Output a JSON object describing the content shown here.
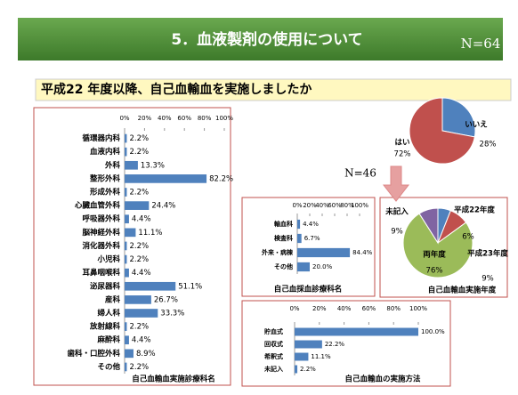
{
  "header": {
    "title": "5．血液製剤の使用について",
    "n": "N=64"
  },
  "question": "平成22 年度以降、自己血輸血を実施しましたか",
  "sub_n": "N=46",
  "chart_data": [
    {
      "type": "bar",
      "orientation": "horizontal",
      "title": "自己血輸血実施診療科名",
      "color": "#4f81bd",
      "categories": [
        "循環器内科",
        "血液内科",
        "外科",
        "整形外科",
        "形成外科",
        "心臓血管外科",
        "呼吸器外科",
        "脳神経外科",
        "消化器外科",
        "小児科",
        "耳鼻咽喉科",
        "泌尿器科",
        "産科",
        "婦人科",
        "放射線科",
        "麻酔科",
        "歯科・口腔外科",
        "その他"
      ],
      "values": [
        2.2,
        2.2,
        13.3,
        82.2,
        2.2,
        24.4,
        4.4,
        11.1,
        2.2,
        2.2,
        4.4,
        51.1,
        26.7,
        33.3,
        2.2,
        4.4,
        8.9,
        2.2
      ],
      "value_labels": [
        "2.2%",
        "2.2%",
        "13.3%",
        "82.2%",
        "2.2%",
        "24.4%",
        "4.4%",
        "11.1%",
        "2.2%",
        "2.2%",
        "4.4%",
        "51.1%",
        "26.7%",
        "33.3%",
        "2.2%",
        "4.4%",
        "8.9%",
        "2.2%"
      ],
      "xlim": [
        0,
        100
      ],
      "xticks": [
        {
          "value": 0,
          "label": "0%"
        },
        {
          "value": 20,
          "label": "20%"
        },
        {
          "value": 40,
          "label": "40%"
        },
        {
          "value": 60,
          "label": "60%"
        },
        {
          "value": 80,
          "label": "80%"
        },
        {
          "value": 100,
          "label": "100%"
        }
      ]
    },
    {
      "type": "pie",
      "categories": [
        "いいえ",
        "はい"
      ],
      "values": [
        28,
        72
      ],
      "value_labels": [
        "28%",
        "72%"
      ],
      "colors": [
        "#4f81bd",
        "#c0504d"
      ]
    },
    {
      "type": "bar",
      "orientation": "horizontal",
      "title": "自己血採血診療科名",
      "color": "#4f81bd",
      "categories": [
        "輸血科",
        "検査科",
        "外来・病棟",
        "その他"
      ],
      "values": [
        4.4,
        6.7,
        84.4,
        20.0
      ],
      "value_labels": [
        "4.4%",
        "6.7%",
        "84.4%",
        "20.0%"
      ],
      "xlim": [
        0,
        100
      ],
      "xticks": [
        {
          "value": 0,
          "label": "0%"
        },
        {
          "value": 20,
          "label": "20%"
        },
        {
          "value": 40,
          "label": "40%"
        },
        {
          "value": 60,
          "label": "60%"
        },
        {
          "value": 80,
          "label": "80%"
        },
        {
          "value": 100,
          "label": "100%"
        }
      ]
    },
    {
      "type": "pie",
      "title": "自己血輸血実施年度",
      "categories": [
        "平成22年度",
        "平成23年度",
        "両年度",
        "未記入"
      ],
      "values": [
        6,
        9,
        76,
        9
      ],
      "value_labels": [
        "6%",
        "9%",
        "76%",
        "9%"
      ],
      "colors": [
        "#4f81bd",
        "#c0504d",
        "#9bbb59",
        "#8064a2"
      ]
    },
    {
      "type": "bar",
      "orientation": "horizontal",
      "title": "自己血輸血の実施方法",
      "color": "#4f81bd",
      "categories": [
        "貯血式",
        "回収式",
        "希釈式",
        "未記入"
      ],
      "values": [
        100.0,
        22.2,
        11.1,
        2.2
      ],
      "value_labels": [
        "100.0%",
        "22.2%",
        "11.1%",
        "2.2%"
      ],
      "xlim": [
        0,
        100
      ],
      "xticks": [
        {
          "value": 0,
          "label": "0%"
        },
        {
          "value": 20,
          "label": "20%"
        },
        {
          "value": 40,
          "label": "40%"
        },
        {
          "value": 60,
          "label": "60%"
        },
        {
          "value": 80,
          "label": "80%"
        },
        {
          "value": 100,
          "label": "100%"
        }
      ]
    }
  ]
}
